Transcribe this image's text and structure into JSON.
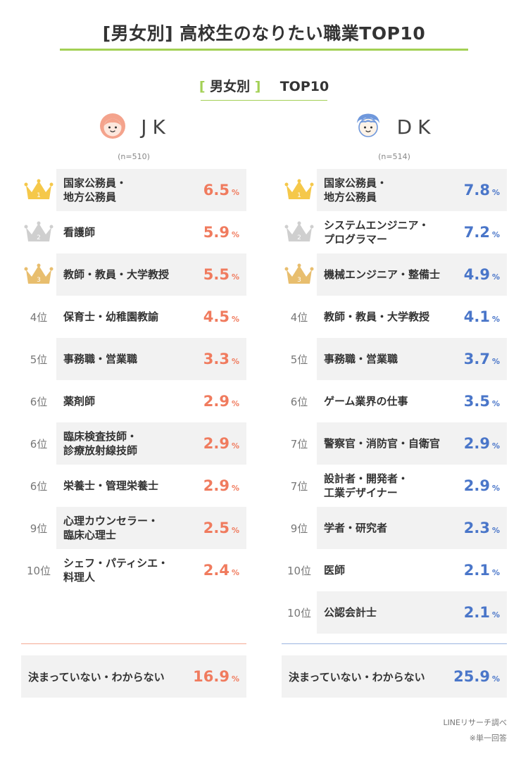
{
  "title": "[男女別] 高校生のなりたい職業TOP10",
  "subtitle": {
    "bracket_open": "[",
    "text": "男女別",
    "bracket_close": "]",
    "suffix": "TOP10"
  },
  "jk": {
    "label": "JK",
    "n": "(n=510)",
    "items": [
      {
        "rank": "1",
        "job": "国家公務員・\n地方公務員",
        "pct": "6.5"
      },
      {
        "rank": "2",
        "job": "看護師",
        "pct": "5.9"
      },
      {
        "rank": "3",
        "job": "教師・教員・大学教授",
        "pct": "5.5"
      },
      {
        "rank": "4位",
        "job": "保育士・幼稚園教諭",
        "pct": "4.5"
      },
      {
        "rank": "5位",
        "job": "事務職・営業職",
        "pct": "3.3"
      },
      {
        "rank": "6位",
        "job": "薬剤師",
        "pct": "2.9"
      },
      {
        "rank": "6位",
        "job": "臨床検査技師・\n診療放射線技師",
        "pct": "2.9"
      },
      {
        "rank": "6位",
        "job": "栄養士・管理栄養士",
        "pct": "2.9"
      },
      {
        "rank": "9位",
        "job": "心理カウンセラー・\n臨床心理士",
        "pct": "2.5"
      },
      {
        "rank": "10位",
        "job": "シェフ・パティシエ・\n料理人",
        "pct": "2.4"
      }
    ],
    "undecided": {
      "label": "決まっていない・わからない",
      "pct": "16.9"
    }
  },
  "dk": {
    "label": "DK",
    "n": "(n=514)",
    "items": [
      {
        "rank": "1",
        "job": "国家公務員・\n地方公務員",
        "pct": "7.8"
      },
      {
        "rank": "2",
        "job": "システムエンジニア・\nプログラマー",
        "pct": "7.2"
      },
      {
        "rank": "3",
        "job": "機械エンジニア・整備士",
        "pct": "4.9"
      },
      {
        "rank": "4位",
        "job": "教師・教員・大学教授",
        "pct": "4.1"
      },
      {
        "rank": "5位",
        "job": "事務職・営業職",
        "pct": "3.7"
      },
      {
        "rank": "6位",
        "job": "ゲーム業界の仕事",
        "pct": "3.5"
      },
      {
        "rank": "7位",
        "job": "警察官・消防官・自衛官",
        "pct": "2.9"
      },
      {
        "rank": "7位",
        "job": "設計者・開発者・\n工業デザイナー",
        "pct": "2.9"
      },
      {
        "rank": "9位",
        "job": "学者・研究者",
        "pct": "2.3"
      },
      {
        "rank": "10位",
        "job": "医師",
        "pct": "2.1"
      },
      {
        "rank": "10位",
        "job": "公認会計士",
        "pct": "2.1"
      }
    ],
    "undecided": {
      "label": "決まっていない・わからない",
      "pct": "25.9"
    }
  },
  "unit": "%",
  "source": "LINEリサーチ調べ",
  "note": "※単一回答",
  "colors": {
    "accent_green": "#a3d055",
    "jk_coral": "#f07b5e",
    "dk_blue": "#4a76c9",
    "gold": "#f5c84a",
    "silver": "#cfcfcf",
    "bronze": "#e8be6e"
  },
  "icons": {
    "rank_1_3": "crown-icon",
    "jk_avatar": "girl-face-icon",
    "dk_avatar": "boy-face-icon"
  }
}
